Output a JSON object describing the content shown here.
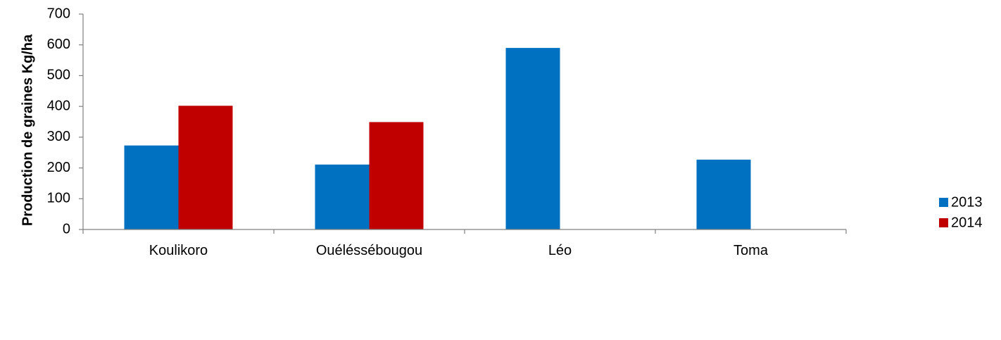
{
  "chart_data": {
    "type": "bar",
    "title": "",
    "xlabel": "",
    "ylabel": "Production de graines Kg/ha",
    "categories": [
      "Koulikoro",
      "Ouéléssébougou",
      "Léo",
      "Toma"
    ],
    "series": [
      {
        "name": "2013",
        "color": "#0070C0",
        "values": [
          273,
          211,
          590,
          227
        ]
      },
      {
        "name": "2014",
        "color": "#C00000",
        "values": [
          402,
          349,
          null,
          null
        ]
      }
    ],
    "ylim": [
      0,
      700
    ],
    "yticks": [
      0,
      100,
      200,
      300,
      400,
      500,
      600,
      700
    ],
    "grid": false,
    "legend": "right"
  }
}
